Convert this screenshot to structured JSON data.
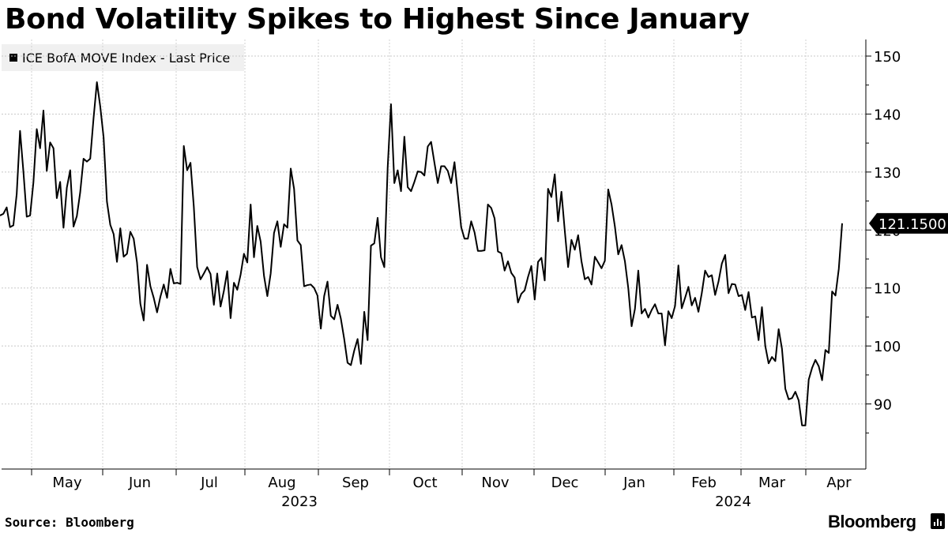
{
  "title": "Bond Volatility Spikes to Highest Since January",
  "legend": {
    "label": "ICE BofA MOVE Index - Last Price",
    "color": "#000000"
  },
  "source": "Source: Bloomberg",
  "brand": "Bloomberg",
  "brand_icon": "bloomberg-terminal-icon",
  "chart_data": {
    "type": "line",
    "title": "Bond Volatility Spikes to Highest Since January",
    "series": [
      {
        "name": "ICE BofA MOVE Index - Last Price",
        "last_value_label": "121.1500",
        "values": [
          122.5,
          122.8,
          123.9,
          120.5,
          120.8,
          126.2,
          137.1,
          130.1,
          122.3,
          122.5,
          128.2,
          137.4,
          134.1,
          140.6,
          130.2,
          135.1,
          134.1,
          125.5,
          128.3,
          120.4,
          127.3,
          130.3,
          120.6,
          122.4,
          126.5,
          132.3,
          131.8,
          132.3,
          139.3,
          145.5,
          141.3,
          136.0,
          124.9,
          120.9,
          119.3,
          114.5,
          120.3,
          115.4,
          115.9,
          119.7,
          118.5,
          114.4,
          107.3,
          104.4,
          114.0,
          110.3,
          108.3,
          105.8,
          108.5,
          110.6,
          108.3,
          113.3,
          110.8,
          110.9,
          110.7,
          134.5,
          130.3,
          131.6,
          124.0,
          113.6,
          111.5,
          112.5,
          113.6,
          112.4,
          107.1,
          112.5,
          106.8,
          109.5,
          112.9,
          104.8,
          110.9,
          109.7,
          112.3,
          115.9,
          114.4,
          124.4,
          115.3,
          120.7,
          118.0,
          112.1,
          108.6,
          112.5,
          119.5,
          121.5,
          117.1,
          121.0,
          120.4,
          130.6,
          127.1,
          118.2,
          117.4,
          110.3,
          110.5,
          110.6,
          110.0,
          108.7,
          103.0,
          108.6,
          111.1,
          105.2,
          104.6,
          107.1,
          104.7,
          101.2,
          97.1,
          96.7,
          99.2,
          101.2,
          96.9,
          105.9,
          101.0,
          117.3,
          117.7,
          122.1,
          115.3,
          113.6,
          130.7,
          141.7,
          128.1,
          130.3,
          126.7,
          136.1,
          127.4,
          126.7,
          128.3,
          130.1,
          130.0,
          129.4,
          134.4,
          135.2,
          131.6,
          128.1,
          131.0,
          131.0,
          130.2,
          128.1,
          131.7,
          126.2,
          120.5,
          118.5,
          118.5,
          121.5,
          119.6,
          116.4,
          116.4,
          116.5,
          124.4,
          123.8,
          122.0,
          116.3,
          116.0,
          113.0,
          114.6,
          112.6,
          111.8,
          107.5,
          109.0,
          109.6,
          111.9,
          113.8,
          108.0,
          114.5,
          115.2,
          111.3,
          127.1,
          125.7,
          129.6,
          121.5,
          126.6,
          119.9,
          113.6,
          118.3,
          116.6,
          119.1,
          114.6,
          111.5,
          111.9,
          110.6,
          115.4,
          114.4,
          113.4,
          114.7,
          127.0,
          124.4,
          120.6,
          115.8,
          117.4,
          114.6,
          110.0,
          103.4,
          106.4,
          113.0,
          105.6,
          106.4,
          104.9,
          106.2,
          107.2,
          105.6,
          105.6,
          100.1,
          106.0,
          104.8,
          106.9,
          113.9,
          106.5,
          108.3,
          110.2,
          107.0,
          108.3,
          105.9,
          109.1,
          113.0,
          111.9,
          112.2,
          108.8,
          111.1,
          114.2,
          115.7,
          109.1,
          110.7,
          110.6,
          108.6,
          108.8,
          106.2,
          109.3,
          104.9,
          105.1,
          101.0,
          106.7,
          100.0,
          97.0,
          98.1,
          97.4,
          102.9,
          99.5,
          92.6,
          90.8,
          91.0,
          92.1,
          90.6,
          86.3,
          86.3,
          94.2,
          96.2,
          97.6,
          96.5,
          94.1,
          99.3,
          98.8,
          109.4,
          108.7,
          113.3,
          121.15
        ]
      }
    ],
    "x_tick_labels": [
      "May",
      "Jun",
      "Jul",
      "Aug",
      "Sep",
      "Oct",
      "Nov",
      "Dec",
      "Jan",
      "Feb",
      "Mar",
      "Apr"
    ],
    "year_labels": [
      "2023",
      "2024"
    ],
    "y_ticks": [
      90,
      100,
      110,
      120,
      130,
      140,
      150
    ],
    "ylim": [
      80,
      151.5
    ],
    "xlabel": "",
    "ylabel": "",
    "grid": true,
    "legend_position": "top-left",
    "y_axis_side": "right"
  }
}
